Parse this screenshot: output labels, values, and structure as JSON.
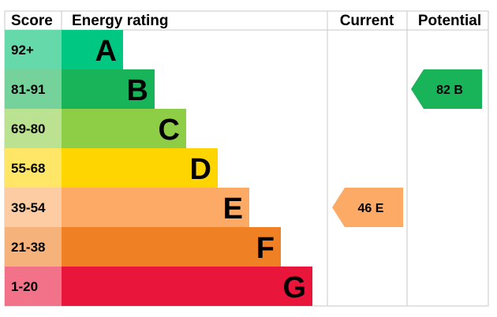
{
  "headers": {
    "score": "Score",
    "rating": "Energy rating",
    "current": "Current",
    "potential": "Potential"
  },
  "chart_data": {
    "type": "bar",
    "title": "",
    "bands": [
      {
        "score": "92+",
        "letter": "A",
        "color": "#00c781",
        "score_bg": "#66d9ab"
      },
      {
        "score": "81-91",
        "letter": "B",
        "color": "#19b459",
        "score_bg": "#75d29b"
      },
      {
        "score": "69-80",
        "letter": "C",
        "color": "#8dce46",
        "score_bg": "#bbe290"
      },
      {
        "score": "55-68",
        "letter": "D",
        "color": "#ffd500",
        "score_bg": "#ffe666"
      },
      {
        "score": "39-54",
        "letter": "E",
        "color": "#fcaa65",
        "score_bg": "#fdcca3"
      },
      {
        "score": "21-38",
        "letter": "F",
        "color": "#ef8023",
        "score_bg": "#f5b37b"
      },
      {
        "score": "1-20",
        "letter": "G",
        "color": "#e9153b",
        "score_bg": "#f27389"
      }
    ],
    "current": {
      "value": 46,
      "letter": "E",
      "label": "46  E",
      "color": "#fcaa65"
    },
    "potential": {
      "value": 82,
      "letter": "B",
      "label": "82  B",
      "color": "#19b459"
    }
  }
}
